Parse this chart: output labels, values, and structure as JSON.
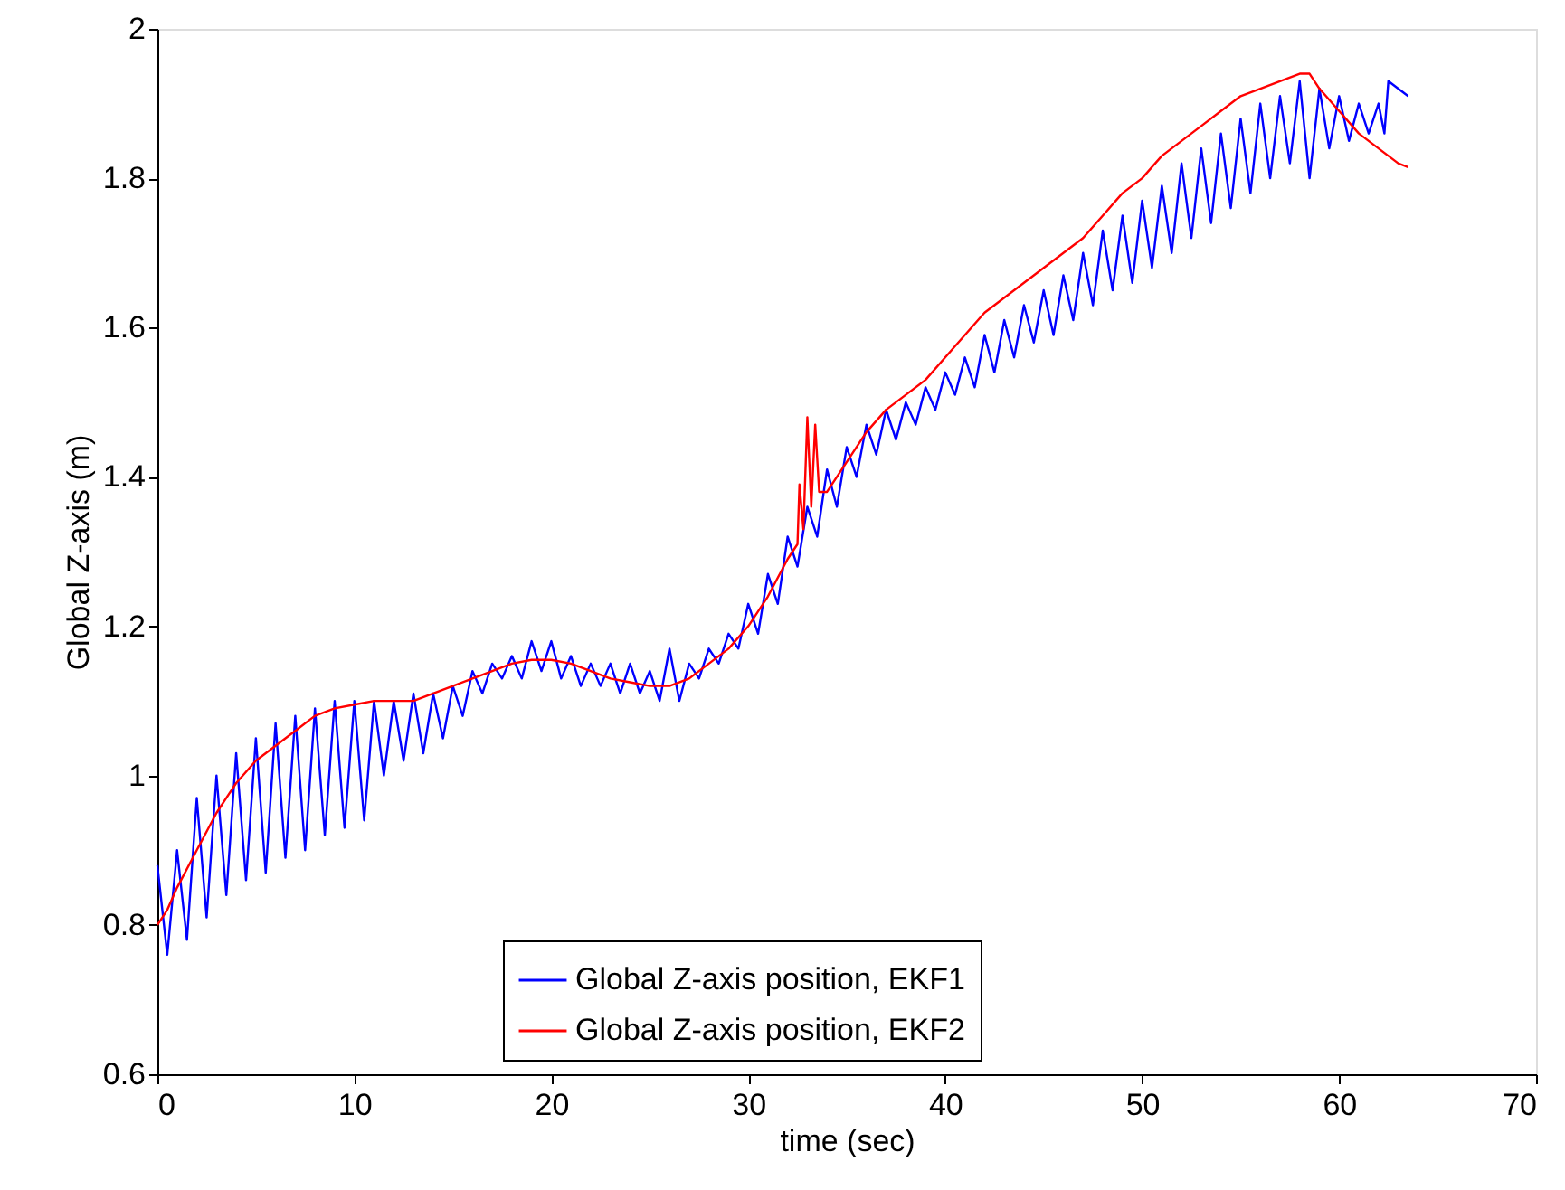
{
  "chart_data": {
    "type": "line",
    "xlabel": "time (sec)",
    "ylabel": "Global Z-axis (m)",
    "xlim": [
      0,
      70
    ],
    "xticks": [
      0,
      10,
      20,
      30,
      40,
      50,
      60,
      70
    ],
    "ylim": [
      0.6,
      2
    ],
    "yticks": [
      0.6,
      0.8,
      1,
      1.2,
      1.4,
      1.6,
      1.8,
      2
    ],
    "grid": false,
    "legend": "bottom",
    "marker": "none",
    "line_style": "solid",
    "series": [
      {
        "name": "Global Z-axis position, EKF1",
        "color": "#0000ff",
        "x": [
          0,
          0.5,
          1,
          1.5,
          2,
          2.5,
          3,
          3.5,
          4,
          4.5,
          5,
          5.5,
          6,
          6.5,
          7,
          7.5,
          8,
          8.5,
          9,
          9.5,
          10,
          10.5,
          11,
          11.5,
          12,
          12.5,
          13,
          13.5,
          14,
          14.5,
          15,
          15.5,
          16,
          16.5,
          17,
          17.5,
          18,
          18.5,
          19,
          19.5,
          20,
          20.5,
          21,
          21.5,
          22,
          22.5,
          23,
          23.5,
          24,
          24.5,
          25,
          25.5,
          26,
          26.5,
          27,
          27.5,
          28,
          28.5,
          29,
          29.5,
          30,
          30.5,
          31,
          31.5,
          32,
          32.5,
          33,
          33.5,
          34,
          34.5,
          35,
          35.5,
          36,
          36.5,
          37,
          37.5,
          38,
          38.5,
          39,
          39.5,
          40,
          40.5,
          41,
          41.5,
          42,
          42.5,
          43,
          43.5,
          44,
          44.5,
          45,
          45.5,
          46,
          46.5,
          47,
          47.5,
          48,
          48.5,
          49,
          49.5,
          50,
          50.5,
          51,
          51.5,
          52,
          52.5,
          53,
          53.5,
          54,
          54.5,
          55,
          55.5,
          56,
          56.5,
          57,
          57.5,
          58,
          58.5,
          59,
          59.5,
          60,
          60.5,
          61,
          61.5,
          62,
          62.3,
          62.5,
          63,
          63.5
        ],
        "values": [
          0.88,
          0.76,
          0.9,
          0.78,
          0.97,
          0.81,
          1.0,
          0.84,
          1.03,
          0.86,
          1.05,
          0.87,
          1.07,
          0.89,
          1.08,
          0.9,
          1.09,
          0.92,
          1.1,
          0.93,
          1.1,
          0.94,
          1.1,
          1.0,
          1.1,
          1.02,
          1.11,
          1.03,
          1.11,
          1.05,
          1.12,
          1.08,
          1.14,
          1.11,
          1.15,
          1.13,
          1.16,
          1.13,
          1.18,
          1.14,
          1.18,
          1.13,
          1.16,
          1.12,
          1.15,
          1.12,
          1.15,
          1.11,
          1.15,
          1.11,
          1.14,
          1.1,
          1.17,
          1.1,
          1.15,
          1.13,
          1.17,
          1.15,
          1.19,
          1.17,
          1.23,
          1.19,
          1.27,
          1.23,
          1.32,
          1.28,
          1.36,
          1.32,
          1.41,
          1.36,
          1.44,
          1.4,
          1.47,
          1.43,
          1.49,
          1.45,
          1.5,
          1.47,
          1.52,
          1.49,
          1.54,
          1.51,
          1.56,
          1.52,
          1.59,
          1.54,
          1.61,
          1.56,
          1.63,
          1.58,
          1.65,
          1.59,
          1.67,
          1.61,
          1.7,
          1.63,
          1.73,
          1.65,
          1.75,
          1.66,
          1.77,
          1.68,
          1.79,
          1.7,
          1.82,
          1.72,
          1.84,
          1.74,
          1.86,
          1.76,
          1.88,
          1.78,
          1.9,
          1.8,
          1.91,
          1.82,
          1.93,
          1.8,
          1.92,
          1.84,
          1.91,
          1.85,
          1.9,
          1.86,
          1.9,
          1.86,
          1.93,
          1.92,
          1.91
        ]
      },
      {
        "name": "Global Z-axis position, EKF2",
        "color": "#ff0000",
        "x": [
          0,
          0.5,
          1,
          2,
          3,
          4,
          5,
          6,
          7,
          8,
          9,
          10,
          11,
          12,
          13,
          14,
          15,
          16,
          17,
          18,
          19,
          20,
          21,
          22,
          23,
          24,
          25,
          26,
          27,
          28,
          29,
          30,
          31,
          32,
          32.5,
          32.6,
          32.8,
          33,
          33.2,
          33.4,
          33.6,
          34,
          35,
          36,
          37,
          38,
          39,
          40,
          41,
          42,
          43,
          44,
          45,
          46,
          47,
          48,
          49,
          50,
          51,
          52,
          53,
          54,
          55,
          56,
          57,
          58,
          58.5,
          59,
          60,
          61,
          62,
          62.5,
          63,
          63.5
        ],
        "values": [
          0.8,
          0.82,
          0.85,
          0.9,
          0.95,
          0.99,
          1.02,
          1.04,
          1.06,
          1.08,
          1.09,
          1.095,
          1.1,
          1.1,
          1.1,
          1.11,
          1.12,
          1.13,
          1.14,
          1.15,
          1.155,
          1.155,
          1.15,
          1.14,
          1.13,
          1.125,
          1.12,
          1.12,
          1.13,
          1.15,
          1.17,
          1.2,
          1.24,
          1.29,
          1.31,
          1.39,
          1.33,
          1.48,
          1.36,
          1.47,
          1.38,
          1.38,
          1.42,
          1.46,
          1.49,
          1.51,
          1.53,
          1.56,
          1.59,
          1.62,
          1.64,
          1.66,
          1.68,
          1.7,
          1.72,
          1.75,
          1.78,
          1.8,
          1.83,
          1.85,
          1.87,
          1.89,
          1.91,
          1.92,
          1.93,
          1.94,
          1.94,
          1.92,
          1.89,
          1.86,
          1.84,
          1.83,
          1.82,
          1.815
        ]
      }
    ]
  }
}
